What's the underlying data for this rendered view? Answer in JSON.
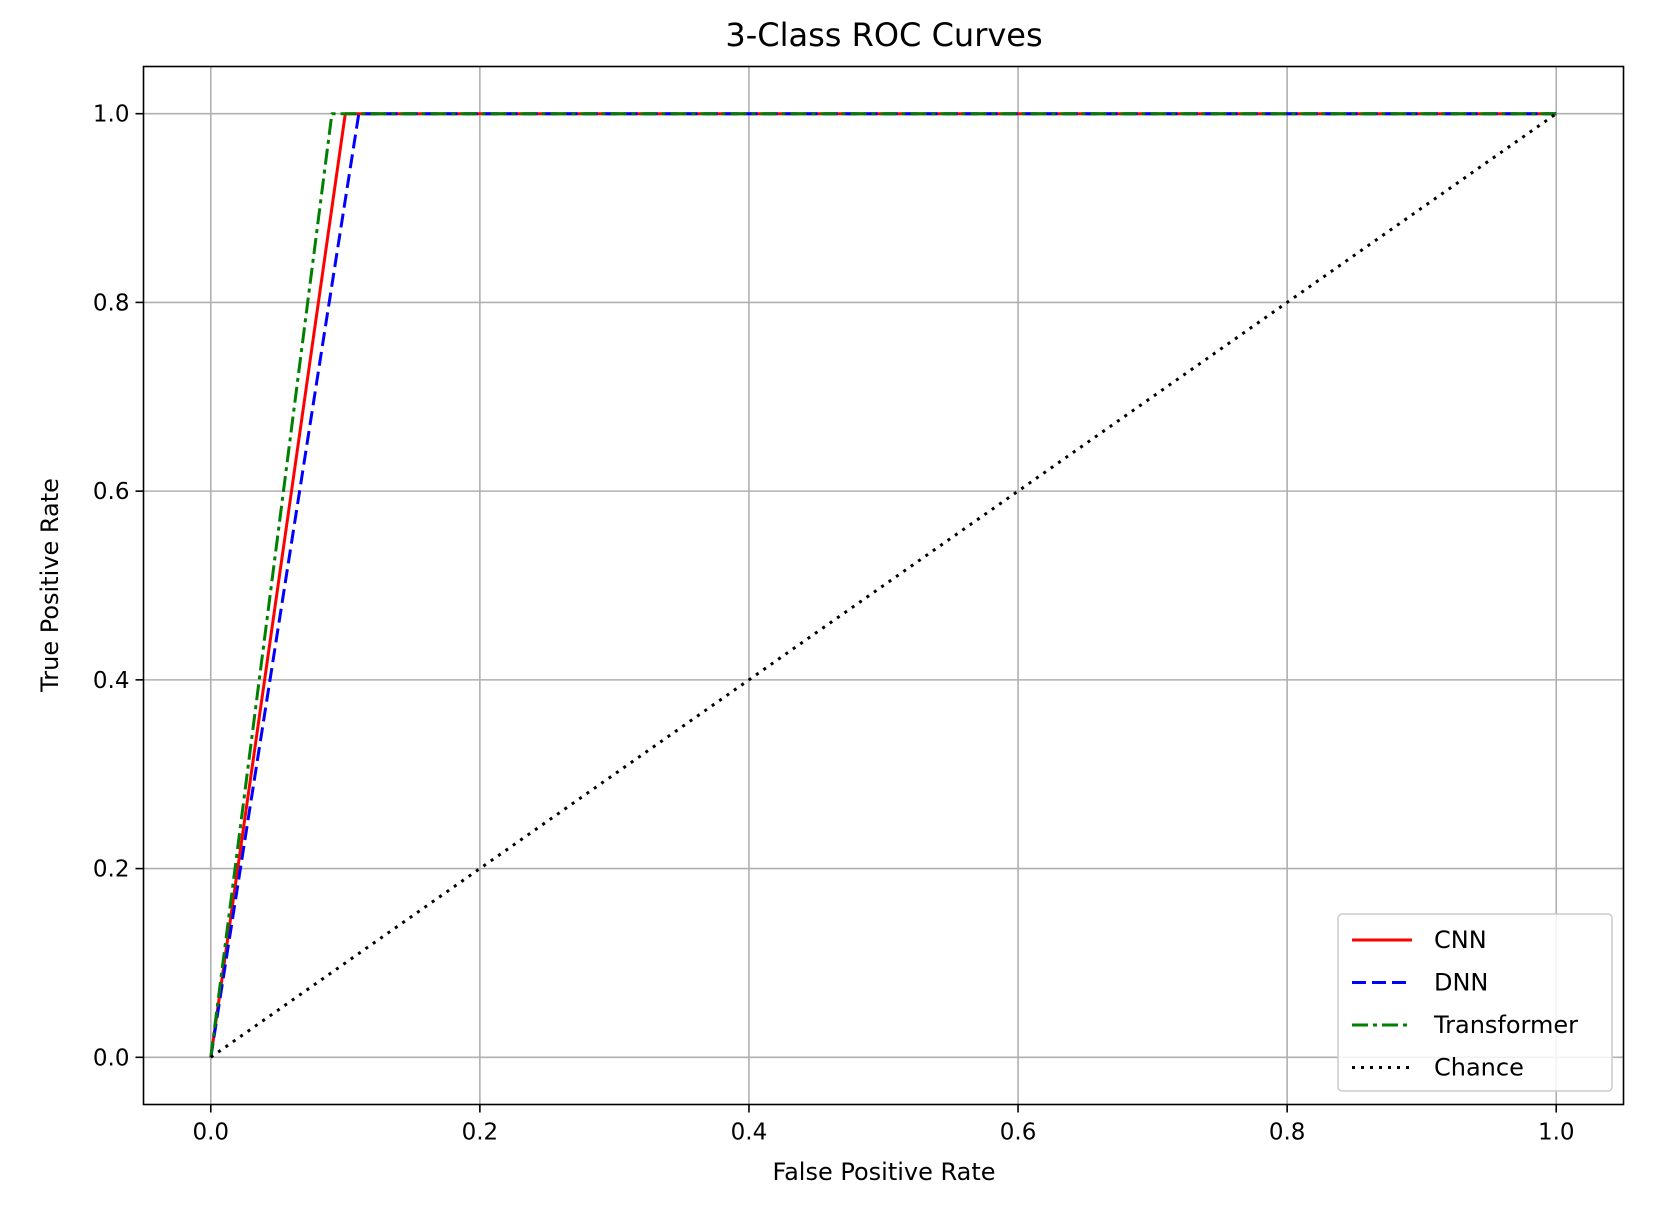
{
  "chart_data": {
    "type": "line",
    "title": "3-Class ROC Curves",
    "xlabel": "False Positive Rate",
    "ylabel": "True Positive Rate",
    "xlim": [
      -0.05,
      1.05
    ],
    "ylim": [
      -0.05,
      1.05
    ],
    "xticks": [
      0.0,
      0.2,
      0.4,
      0.6,
      0.8,
      1.0
    ],
    "yticks": [
      0.0,
      0.2,
      0.4,
      0.6,
      0.8,
      1.0
    ],
    "xtick_labels": [
      "0.0",
      "0.2",
      "0.4",
      "0.6",
      "0.8",
      "1.0"
    ],
    "ytick_labels": [
      "0.0",
      "0.2",
      "0.4",
      "0.6",
      "0.8",
      "1.0"
    ],
    "grid": true,
    "legend_position": "lower-right",
    "series": [
      {
        "name": "CNN",
        "color": "#ff0000",
        "style": "solid",
        "x": [
          0.0,
          0.1,
          1.0
        ],
        "y": [
          0.0,
          1.0,
          1.0
        ]
      },
      {
        "name": "DNN",
        "color": "#0000ff",
        "style": "dashed",
        "x": [
          0.0,
          0.11,
          1.0
        ],
        "y": [
          0.0,
          1.0,
          1.0
        ]
      },
      {
        "name": "Transformer",
        "color": "#008000",
        "style": "dashdot",
        "x": [
          0.0,
          0.09,
          1.0
        ],
        "y": [
          0.0,
          1.0,
          1.0
        ]
      },
      {
        "name": "Chance",
        "color": "#000000",
        "style": "dotted",
        "x": [
          0.0,
          1.0
        ],
        "y": [
          0.0,
          1.0
        ]
      }
    ]
  }
}
